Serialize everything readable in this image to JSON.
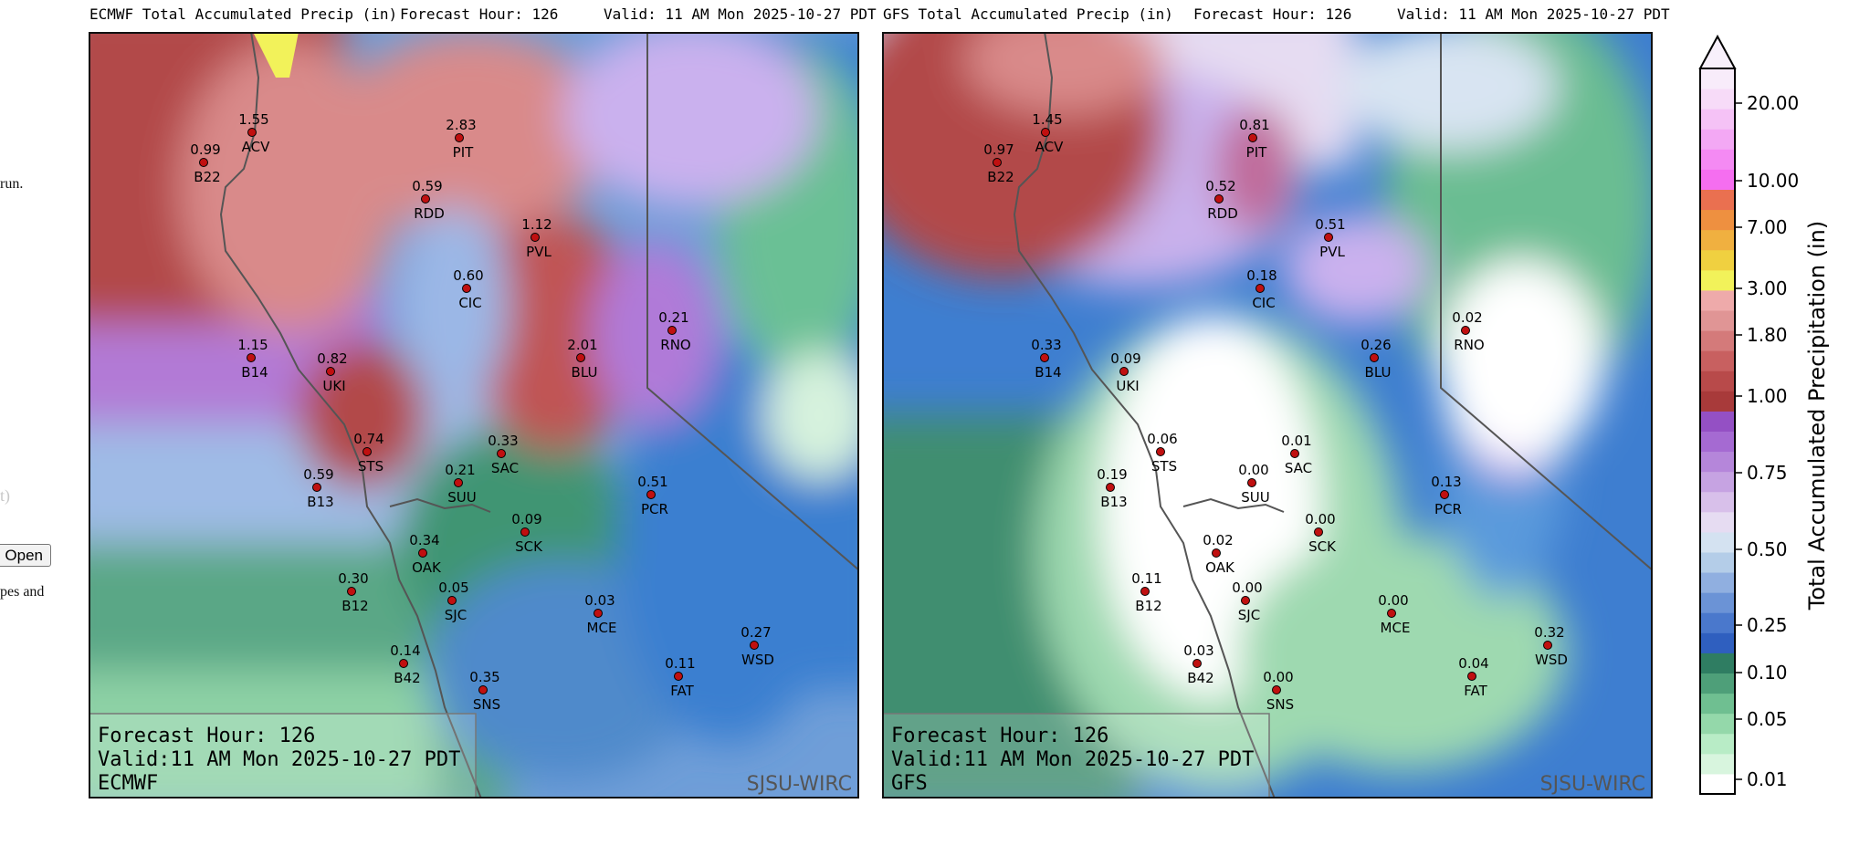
{
  "page_fragments": {
    "left_text_1": "run.",
    "left_text_2": "t)",
    "open_button": "Open",
    "left_text_3": "pes and"
  },
  "panels": [
    {
      "id": "ecmwf",
      "title": "ECMWF Total Accumulated Precip (in)",
      "forecast_hour": "Forecast Hour: 126",
      "valid": "Valid: 11 AM Mon 2025-10-27 PDT",
      "info_line1": "Forecast Hour: 126",
      "info_line2": "Valid:11 AM Mon 2025-10-27 PDT",
      "info_line3": "ECMWF",
      "watermark": "SJSU-WIRC",
      "stations": [
        {
          "code": "ACV",
          "value": "1.55"
        },
        {
          "code": "B22",
          "value": "0.99"
        },
        {
          "code": "PIT",
          "value": "2.83"
        },
        {
          "code": "RDD",
          "value": "0.59"
        },
        {
          "code": "PVL",
          "value": "1.12"
        },
        {
          "code": "CIC",
          "value": "0.60"
        },
        {
          "code": "RNO",
          "value": "0.21"
        },
        {
          "code": "B14",
          "value": "1.15"
        },
        {
          "code": "UKI",
          "value": "0.82"
        },
        {
          "code": "BLU",
          "value": "2.01"
        },
        {
          "code": "STS",
          "value": "0.74"
        },
        {
          "code": "SAC",
          "value": "0.33"
        },
        {
          "code": "B13",
          "value": "0.59"
        },
        {
          "code": "SUU",
          "value": "0.21"
        },
        {
          "code": "PCR",
          "value": "0.51"
        },
        {
          "code": "SCK",
          "value": "0.09"
        },
        {
          "code": "OAK",
          "value": "0.34"
        },
        {
          "code": "B12",
          "value": "0.30"
        },
        {
          "code": "SJC",
          "value": "0.05"
        },
        {
          "code": "MCE",
          "value": "0.03"
        },
        {
          "code": "WSD",
          "value": "0.27"
        },
        {
          "code": "B42",
          "value": "0.14"
        },
        {
          "code": "SNS",
          "value": "0.35"
        },
        {
          "code": "FAT",
          "value": "0.11"
        }
      ]
    },
    {
      "id": "gfs",
      "title": "GFS Total Accumulated Precip (in)",
      "forecast_hour": "Forecast Hour: 126",
      "valid": "Valid: 11 AM Mon 2025-10-27 PDT",
      "info_line1": "Forecast Hour: 126",
      "info_line2": "Valid:11 AM Mon 2025-10-27 PDT",
      "info_line3": "GFS",
      "watermark": "SJSU-WIRC",
      "stations": [
        {
          "code": "ACV",
          "value": "1.45"
        },
        {
          "code": "B22",
          "value": "0.97"
        },
        {
          "code": "PIT",
          "value": "0.81"
        },
        {
          "code": "RDD",
          "value": "0.52"
        },
        {
          "code": "PVL",
          "value": "0.51"
        },
        {
          "code": "CIC",
          "value": "0.18"
        },
        {
          "code": "RNO",
          "value": "0.02"
        },
        {
          "code": "B14",
          "value": "0.33"
        },
        {
          "code": "UKI",
          "value": "0.09"
        },
        {
          "code": "BLU",
          "value": "0.26"
        },
        {
          "code": "STS",
          "value": "0.06"
        },
        {
          "code": "SAC",
          "value": "0.01"
        },
        {
          "code": "B13",
          "value": "0.19"
        },
        {
          "code": "SUU",
          "value": "0.00"
        },
        {
          "code": "PCR",
          "value": "0.13"
        },
        {
          "code": "SCK",
          "value": "0.00"
        },
        {
          "code": "OAK",
          "value": "0.02"
        },
        {
          "code": "B12",
          "value": "0.11"
        },
        {
          "code": "SJC",
          "value": "0.00"
        },
        {
          "code": "MCE",
          "value": "0.00"
        },
        {
          "code": "WSD",
          "value": "0.32"
        },
        {
          "code": "B42",
          "value": "0.03"
        },
        {
          "code": "SNS",
          "value": "0.00"
        },
        {
          "code": "FAT",
          "value": "0.04"
        }
      ]
    }
  ],
  "colorbar": {
    "label": "Total Accumulated Precipitation (in)",
    "ticks": [
      "20.00",
      "10.00",
      "7.00",
      "3.00",
      "1.80",
      "1.00",
      "0.75",
      "0.50",
      "0.25",
      "0.10",
      "0.05",
      "0.01"
    ],
    "colors": [
      "#ffffff",
      "#d8f5de",
      "#b8ecc6",
      "#94d8aa",
      "#6fbf91",
      "#4e9f79",
      "#2f7d62",
      "#2f5fbf",
      "#4a78cc",
      "#6b93d6",
      "#90afe0",
      "#b4cde8",
      "#d4e2f1",
      "#e6dcf2",
      "#d8c0ea",
      "#c6a3e2",
      "#b586da",
      "#a56ad2",
      "#9450c4",
      "#a83a3a",
      "#b84a4a",
      "#c86060",
      "#d47a7a",
      "#e09595",
      "#eeaaaa",
      "#f2f25a",
      "#f0d040",
      "#f0b040",
      "#ee9040",
      "#ea7050",
      "#f56ef0",
      "#f48af3",
      "#f3a8f4",
      "#f5c2f6",
      "#f7dbf8",
      "#f8ecfa"
    ]
  }
}
